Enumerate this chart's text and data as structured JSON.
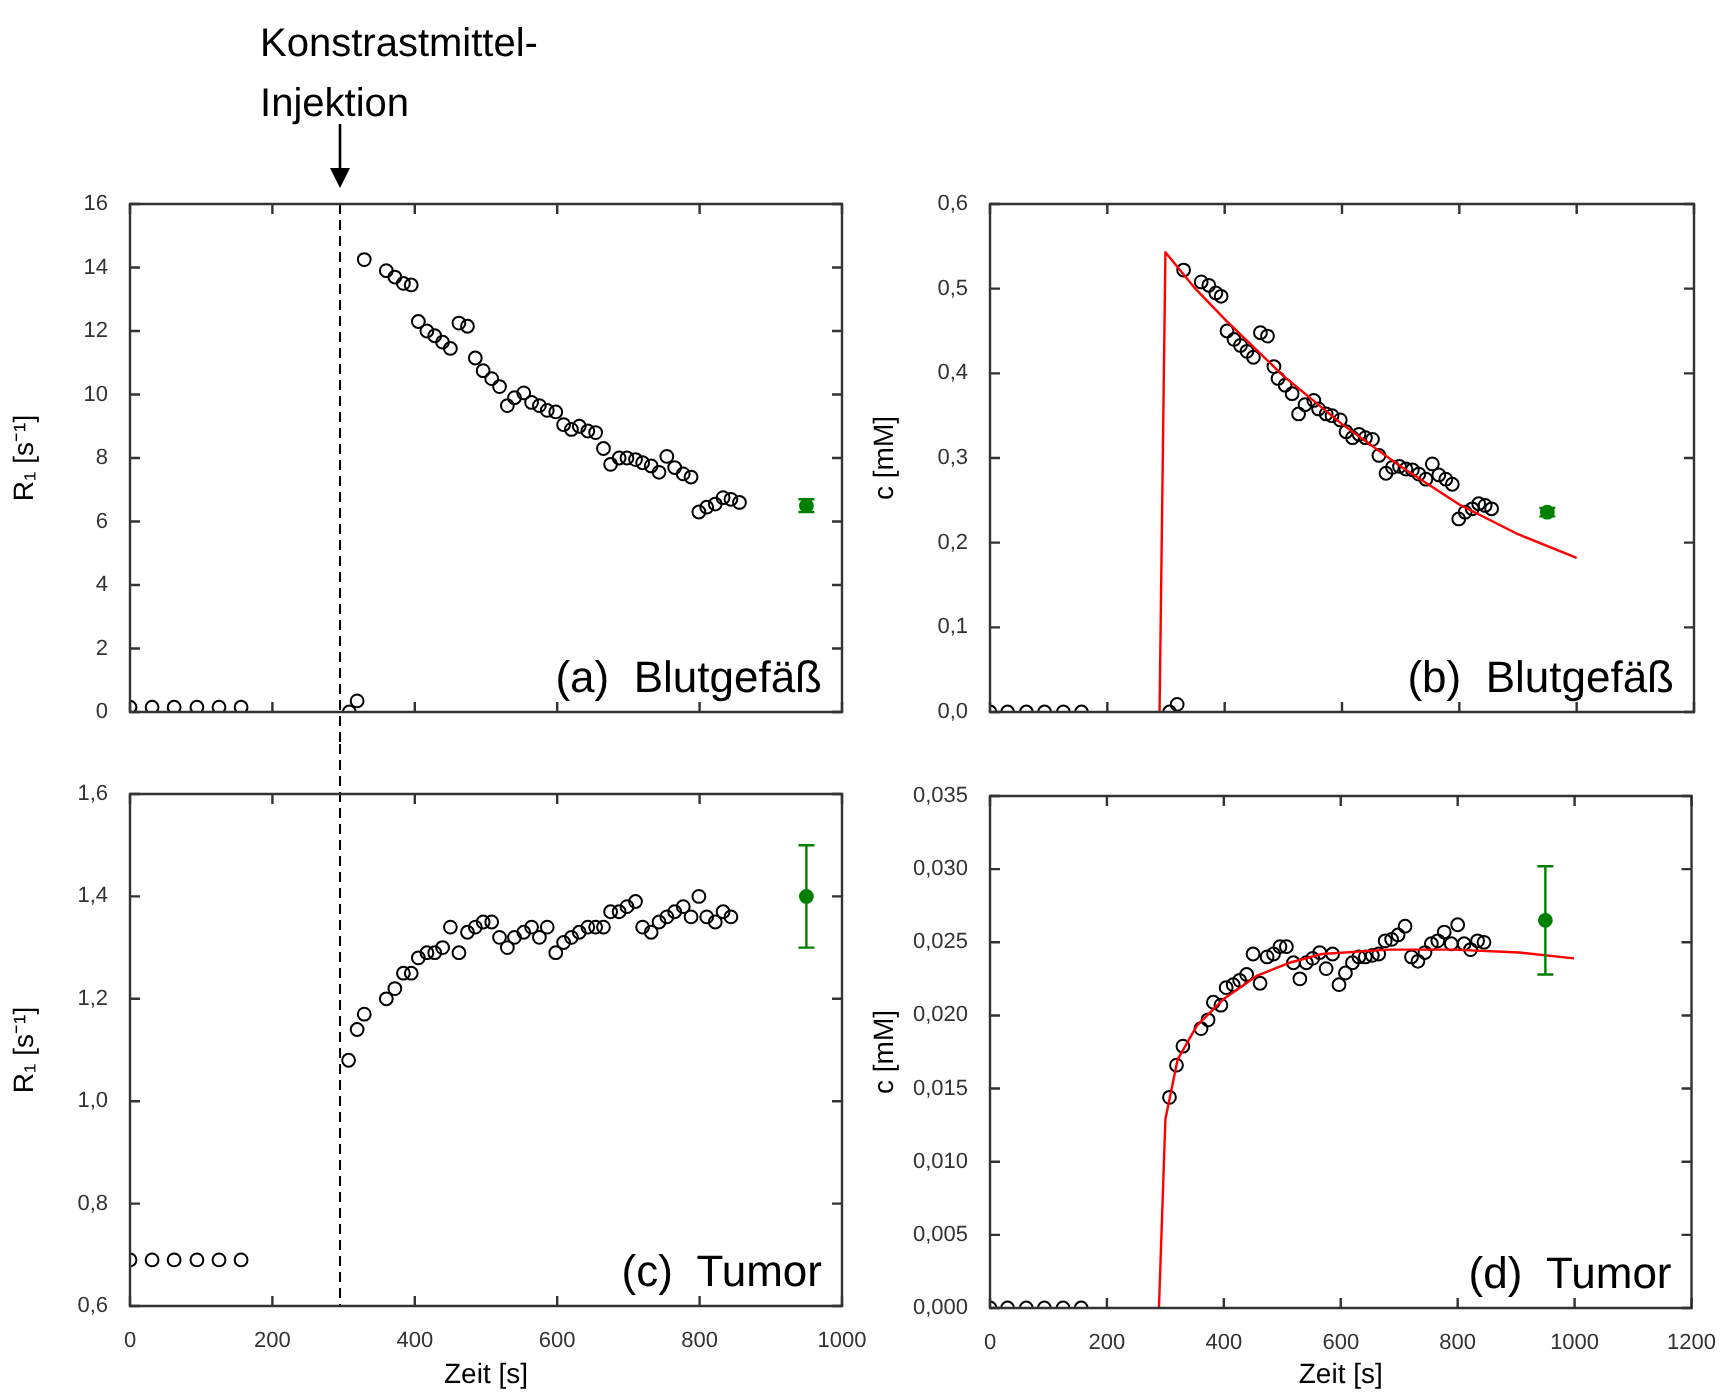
{
  "chart_data": [
    {
      "type": "scatter",
      "ylabel": "R₁ [s⁻¹]",
      "xlim": [
        0,
        1000
      ],
      "xticks": [
        0,
        200,
        400,
        600,
        800,
        1000
      ],
      "ylim": [
        0,
        16
      ],
      "yticks": [
        0,
        2,
        4,
        6,
        8,
        10,
        12,
        14,
        16
      ],
      "tick_labels": "y",
      "annotations": [
        "(a)  Blutgefäß"
      ],
      "ref_lines": [
        {
          "axis": "x",
          "value": 295,
          "label": "Konstrastmittel-Injektion",
          "color": "#000000",
          "line_style": "dashed"
        }
      ],
      "series": [
        {
          "color": "#000000",
          "marker": "circle",
          "x": [
            0,
            31,
            62,
            94,
            125,
            156,
            308,
            319,
            329,
            360,
            372,
            384,
            395,
            405,
            417,
            428,
            439,
            450,
            462,
            474,
            485,
            496,
            508,
            519,
            530,
            540,
            553,
            564,
            575,
            586,
            598,
            609,
            620,
            631,
            643,
            654,
            665,
            675,
            687,
            698,
            710,
            720,
            732,
            743,
            754,
            765,
            777,
            788,
            799,
            810,
            822,
            833,
            844,
            856
          ],
          "values": [
            0.15,
            0.15,
            0.15,
            0.15,
            0.15,
            0.15,
            0,
            0.35,
            14.25,
            13.9,
            13.7,
            13.5,
            13.45,
            12.3,
            12.0,
            11.85,
            11.65,
            11.45,
            12.25,
            12.15,
            11.15,
            10.75,
            10.5,
            10.25,
            9.65,
            9.9,
            10.05,
            9.75,
            9.65,
            9.5,
            9.45,
            9.05,
            8.9,
            9.0,
            8.85,
            8.8,
            8.3,
            7.8,
            8.0,
            8.0,
            7.95,
            7.85,
            7.75,
            7.55,
            8.05,
            7.7,
            7.5,
            7.4,
            6.3,
            6.45,
            6.55,
            6.75,
            6.7,
            6.6
          ]
        },
        {
          "color": "#008000",
          "marker": "circle",
          "x": [
            950
          ],
          "values": [
            6.5
          ],
          "errors": [
            0.2
          ]
        }
      ]
    },
    {
      "type": "scatter",
      "ylabel": "c [mM]",
      "xlim": [
        0,
        1200
      ],
      "xticks": [
        0,
        200,
        400,
        600,
        800,
        1000,
        1200
      ],
      "ylim": [
        0,
        0.6
      ],
      "yticks": [
        {
          "value": 0,
          "label": "0,0"
        },
        {
          "value": 0.1,
          "label": "0,1"
        },
        {
          "value": 0.2,
          "label": "0,2"
        },
        {
          "value": 0.3,
          "label": "0,3"
        },
        {
          "value": 0.4,
          "label": "0,4"
        },
        {
          "value": 0.5,
          "label": "0,5"
        },
        {
          "value": 0.6,
          "label": "0,6"
        }
      ],
      "tick_labels": "y",
      "annotations": [
        "(b)  Blutgefäß"
      ],
      "series": [
        {
          "color": "#000000",
          "marker": "circle",
          "x": [
            0,
            30,
            62,
            93,
            125,
            156,
            306,
            319,
            330,
            360,
            373,
            385,
            394,
            404,
            416,
            427,
            438,
            449,
            461,
            473,
            484,
            491,
            503,
            515,
            526,
            537,
            552,
            560,
            573,
            583,
            597,
            607,
            618,
            629,
            640,
            652,
            663,
            675,
            686,
            698,
            709,
            720,
            731,
            743,
            754,
            765,
            777,
            788,
            799,
            810,
            822,
            833,
            844,
            855
          ],
          "values": [
            0,
            0,
            0,
            0,
            0,
            0,
            0,
            0.009,
            0.522,
            0.508,
            0.504,
            0.495,
            0.491,
            0.45,
            0.44,
            0.433,
            0.426,
            0.419,
            0.448,
            0.444,
            0.408,
            0.394,
            0.386,
            0.376,
            0.352,
            0.363,
            0.368,
            0.358,
            0.352,
            0.35,
            0.345,
            0.331,
            0.324,
            0.328,
            0.324,
            0.322,
            0.303,
            0.282,
            0.289,
            0.29,
            0.287,
            0.286,
            0.281,
            0.275,
            0.293,
            0.28,
            0.275,
            0.269,
            0.228,
            0.236,
            0.24,
            0.246,
            0.244,
            0.24
          ]
        },
        {
          "color": "#008000",
          "marker": "circle",
          "x": [
            950
          ],
          "values": [
            0.236
          ],
          "errors": [
            0.005
          ]
        },
        {
          "type": "line",
          "color": "#ff0000",
          "marker": "none",
          "x": [
            289,
            299,
            350,
            400,
            500,
            600,
            700,
            800,
            900,
            1000
          ],
          "values": [
            0,
            0.543,
            0.5,
            0.464,
            0.397,
            0.34,
            0.29,
            0.245,
            0.21,
            0.182
          ]
        }
      ]
    },
    {
      "type": "scatter",
      "xlabel": "Zeit [s]",
      "ylabel": "R₁ [s⁻¹]",
      "xlim": [
        0,
        1000
      ],
      "xticks": [
        0,
        200,
        400,
        600,
        800,
        1000
      ],
      "ylim": [
        0.6,
        1.6
      ],
      "yticks": [
        {
          "value": 0.6,
          "label": "0,6"
        },
        {
          "value": 0.8,
          "label": "0,8"
        },
        {
          "value": 1.0,
          "label": "1,0"
        },
        {
          "value": 1.2,
          "label": "1,2"
        },
        {
          "value": 1.4,
          "label": "1,4"
        },
        {
          "value": 1.6,
          "label": "1,6"
        }
      ],
      "annotations": [
        "(c)  Tumor"
      ],
      "ref_lines": [
        {
          "axis": "x",
          "value": 295,
          "color": "#000000",
          "line_style": "dashed"
        }
      ],
      "series": [
        {
          "color": "#000000",
          "marker": "circle",
          "x": [
            0,
            31,
            62,
            94,
            125,
            156,
            307,
            319,
            329,
            360,
            372,
            384,
            395,
            405,
            417,
            428,
            439,
            450,
            462,
            474,
            485,
            496,
            508,
            519,
            530,
            540,
            553,
            564,
            575,
            586,
            598,
            609,
            620,
            631,
            643,
            654,
            665,
            675,
            687,
            698,
            710,
            720,
            732,
            743,
            754,
            765,
            777,
            788,
            799,
            810,
            822,
            833,
            844
          ],
          "values": [
            0.69,
            0.69,
            0.69,
            0.69,
            0.69,
            0.69,
            1.08,
            1.14,
            1.17,
            1.2,
            1.22,
            1.25,
            1.25,
            1.28,
            1.29,
            1.29,
            1.3,
            1.34,
            1.29,
            1.33,
            1.34,
            1.35,
            1.35,
            1.32,
            1.3,
            1.32,
            1.33,
            1.34,
            1.32,
            1.34,
            1.29,
            1.31,
            1.32,
            1.33,
            1.34,
            1.34,
            1.34,
            1.37,
            1.37,
            1.38,
            1.39,
            1.34,
            1.33,
            1.35,
            1.36,
            1.37,
            1.38,
            1.36,
            1.4,
            1.36,
            1.35,
            1.37,
            1.36
          ]
        },
        {
          "color": "#008000",
          "marker": "circle",
          "x": [
            950
          ],
          "values": [
            1.4
          ],
          "errors": [
            0.1
          ]
        }
      ]
    },
    {
      "type": "scatter",
      "xlabel": "Zeit [s]",
      "ylabel": "c [mM]",
      "xlim": [
        0,
        1200
      ],
      "xticks": [
        0,
        200,
        400,
        600,
        800,
        1000,
        1200
      ],
      "ylim": [
        0,
        0.035
      ],
      "yticks": [
        {
          "value": 0,
          "label": "0,000"
        },
        {
          "value": 0.005,
          "label": "0,005"
        },
        {
          "value": 0.01,
          "label": "0,010"
        },
        {
          "value": 0.015,
          "label": "0,015"
        },
        {
          "value": 0.02,
          "label": "0,020"
        },
        {
          "value": 0.025,
          "label": "0,025"
        },
        {
          "value": 0.03,
          "label": "0,030"
        },
        {
          "value": 0.035,
          "label": "0,035"
        }
      ],
      "annotations": [
        "(d)  Tumor"
      ],
      "series": [
        {
          "color": "#000000",
          "marker": "circle",
          "x": [
            0,
            30,
            62,
            93,
            125,
            156,
            307,
            319,
            330,
            361,
            373,
            382,
            395,
            404,
            416,
            427,
            439,
            450,
            462,
            474,
            485,
            496,
            507,
            519,
            530,
            541,
            552,
            564,
            575,
            586,
            597,
            608,
            620,
            631,
            642,
            654,
            665,
            676,
            687,
            698,
            710,
            721,
            732,
            744,
            755,
            766,
            777,
            789,
            800,
            811,
            822,
            834,
            845
          ],
          "values": [
            0,
            0,
            0,
            0,
            0,
            0,
            0.0144,
            0.0166,
            0.0179,
            0.0191,
            0.0197,
            0.0209,
            0.0207,
            0.0219,
            0.0221,
            0.0224,
            0.0228,
            0.0242,
            0.0222,
            0.024,
            0.0242,
            0.0247,
            0.0247,
            0.0236,
            0.0225,
            0.0236,
            0.0239,
            0.0243,
            0.0232,
            0.0242,
            0.0221,
            0.0229,
            0.0236,
            0.024,
            0.024,
            0.0241,
            0.0242,
            0.0251,
            0.0252,
            0.0255,
            0.0261,
            0.024,
            0.0237,
            0.0243,
            0.0249,
            0.0251,
            0.0257,
            0.0249,
            0.0262,
            0.0249,
            0.0245,
            0.0251,
            0.025
          ]
        },
        {
          "color": "#008000",
          "marker": "circle",
          "x": [
            950
          ],
          "values": [
            0.0265
          ],
          "errors": [
            [
              0.0228,
              0.0302
            ]
          ]
        },
        {
          "type": "line",
          "color": "#ff0000",
          "marker": "none",
          "x": [
            289,
            300,
            321,
            354,
            399,
            456,
            512,
            568,
            681,
            793,
            906,
            999
          ],
          "values": [
            0,
            0.0129,
            0.017,
            0.0193,
            0.0211,
            0.0227,
            0.0236,
            0.0242,
            0.0245,
            0.0245,
            0.0243,
            0.0239
          ]
        }
      ]
    }
  ]
}
